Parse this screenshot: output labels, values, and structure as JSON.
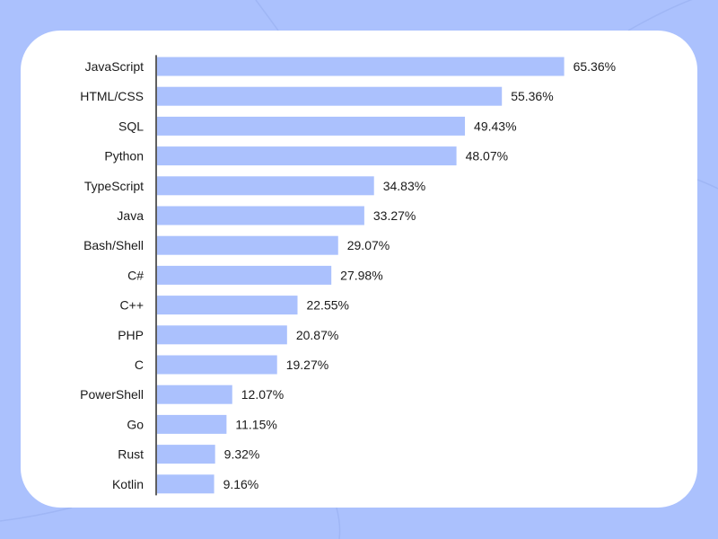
{
  "colors": {
    "background": "#abc1fd",
    "card": "#ffffff",
    "bar": "#abc1fd",
    "axis": "#2a2a2a",
    "text": "#1a1a1a"
  },
  "chart_data": {
    "type": "bar",
    "orientation": "horizontal",
    "grid": false,
    "legend": "none",
    "xlim": [
      0,
      70
    ],
    "value_suffix": "%",
    "categories": [
      "JavaScript",
      "HTML/CSS",
      "SQL",
      "Python",
      "TypeScript",
      "Java",
      "Bash/Shell",
      "C#",
      "C++",
      "PHP",
      "C",
      "PowerShell",
      "Go",
      "Rust",
      "Kotlin"
    ],
    "values": [
      65.36,
      55.36,
      49.43,
      48.07,
      34.83,
      33.27,
      29.07,
      27.98,
      22.55,
      20.87,
      19.27,
      12.07,
      11.15,
      9.32,
      9.16
    ],
    "value_labels": [
      "65.36%",
      "55.36%",
      "49.43%",
      "48.07%",
      "34.83%",
      "33.27%",
      "29.07%",
      "27.98%",
      "22.55%",
      "20.87%",
      "19.27%",
      "12.07%",
      "11.15%",
      "9.32%",
      "9.16%"
    ]
  }
}
